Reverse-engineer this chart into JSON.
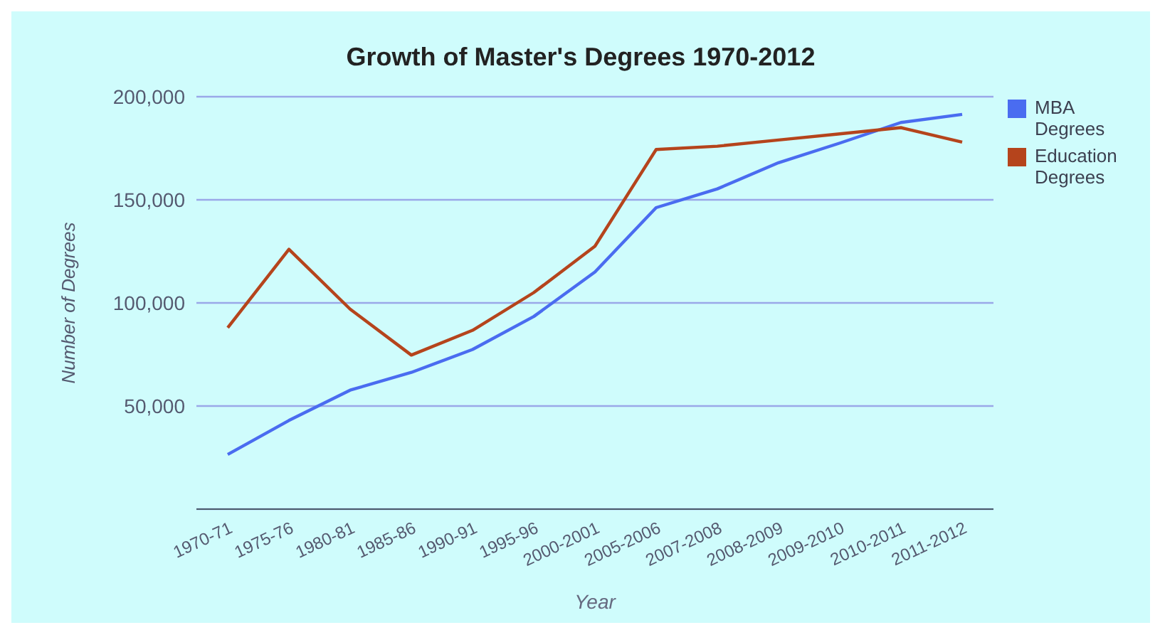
{
  "chart_data": {
    "type": "line",
    "title": "Growth of Master's Degrees 1970-2012",
    "xlabel": "Year",
    "ylabel": "Number of Degrees",
    "categories": [
      "1970-71",
      "1975-76",
      "1980-81",
      "1985-86",
      "1990-91",
      "1995-96",
      "2000-2001",
      "2005-2006",
      "2007-2008",
      "2008-2009",
      "2009-2010",
      "2010-2011",
      "2011-2012"
    ],
    "series": [
      {
        "name": "MBA Degrees",
        "color": "#4a6cf0",
        "values": [
          26500,
          43000,
          57700,
          66300,
          77400,
          93400,
          115000,
          146200,
          155300,
          168000,
          177500,
          187500,
          191400
        ]
      },
      {
        "name": "Education Degrees",
        "color": "#b5441c",
        "values": [
          88000,
          126000,
          97000,
          74700,
          86700,
          105000,
          127500,
          174400,
          176000,
          179000,
          182000,
          185000,
          178000
        ]
      }
    ],
    "ylim": [
      0,
      200000
    ],
    "yticks": [
      {
        "value": 50000,
        "label": "50,000"
      },
      {
        "value": 100000,
        "label": "100,000"
      },
      {
        "value": 150000,
        "label": "150,000"
      },
      {
        "value": 200000,
        "label": "200,000"
      }
    ],
    "grid": "y",
    "legend": "top right",
    "marker": "none",
    "line_style": "solid"
  }
}
